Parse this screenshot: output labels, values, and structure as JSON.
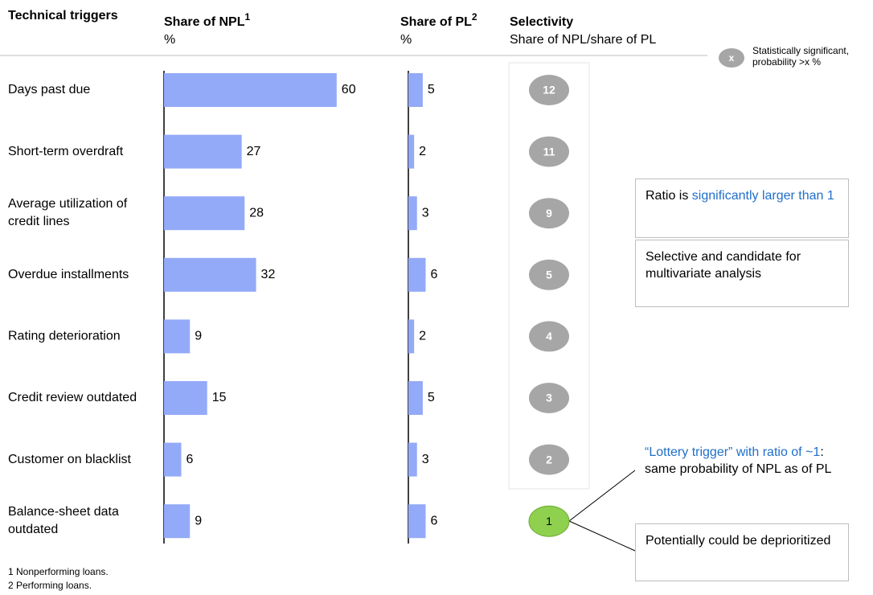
{
  "headers": {
    "triggers": "Technical triggers",
    "npl": "Share of NPL",
    "npl_note": "1",
    "npl_unit": "%",
    "pl": "Share of PL",
    "pl_note": "2",
    "pl_unit": "%",
    "selectivity": "Selectivity",
    "selectivity_sub": "Share of NPL/share of PL"
  },
  "bar_color": "#93aaf8",
  "rows": [
    {
      "label": "Days past due",
      "npl": 60,
      "pl": 5,
      "selectivity": 12,
      "color": "#a6a6a6"
    },
    {
      "label": "Short-term overdraft",
      "npl": 27,
      "pl": 2,
      "selectivity": 11,
      "color": "#a6a6a6"
    },
    {
      "label": "Average utilization of credit lines",
      "npl": 28,
      "pl": 3,
      "selectivity": 9,
      "color": "#a6a6a6"
    },
    {
      "label": "Overdue installments",
      "npl": 32,
      "pl": 6,
      "selectivity": 5,
      "color": "#a6a6a6"
    },
    {
      "label": "Rating deterioration",
      "npl": 9,
      "pl": 2,
      "selectivity": 4,
      "color": "#a6a6a6"
    },
    {
      "label": "Credit review outdated",
      "npl": 15,
      "pl": 5,
      "selectivity": 3,
      "color": "#a6a6a6"
    },
    {
      "label": "Customer on blacklist",
      "npl": 6,
      "pl": 3,
      "selectivity": 2,
      "color": "#a6a6a6"
    },
    {
      "label": "Balance-sheet data outdated",
      "npl": 9,
      "pl": 6,
      "selectivity": 1,
      "color": "#8fd14f"
    }
  ],
  "legend": {
    "marker": "x",
    "text": "Statistically significant, probability >x %"
  },
  "callouts": {
    "significant": [
      "Ratio is ",
      "significantly larger than 1"
    ],
    "selective": "Selective and candidate for multivariate analysis",
    "lottery": [
      "“Lottery trigger” with ratio of ~1",
      ": same probability of NPL as of PL"
    ],
    "deprioritize": "Potentially could be deprioritized"
  },
  "footnotes": [
    "1 Nonperforming loans.",
    "2 Performing loans."
  ]
}
